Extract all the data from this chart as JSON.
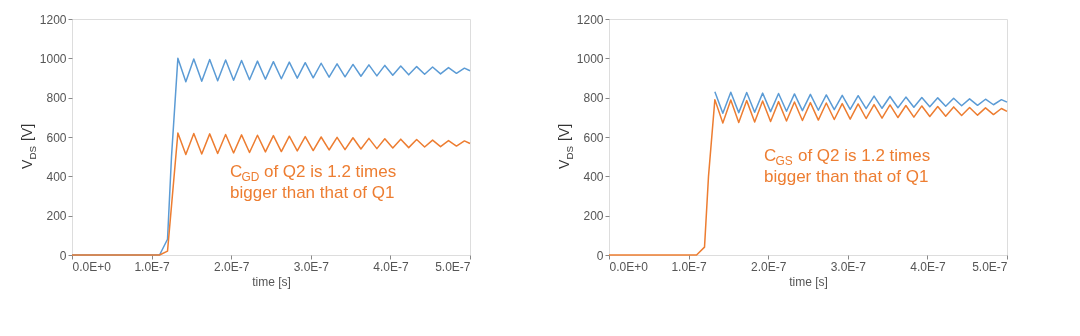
{
  "chart_data": [
    {
      "type": "line",
      "xlabel": "time [s]",
      "ylabel": "V$_{DS}$ [V]",
      "xlim": [
        0,
        5e-07
      ],
      "ylim": [
        0,
        1200
      ],
      "xticks": [
        {
          "value": 0,
          "label": "0.0E+0"
        },
        {
          "value": 1e-07,
          "label": "1.0E-7"
        },
        {
          "value": 2e-07,
          "label": "2.0E-7"
        },
        {
          "value": 3e-07,
          "label": "3.0E-7"
        },
        {
          "value": 4e-07,
          "label": "4.0E-7"
        },
        {
          "value": 5e-07,
          "label": "5.0E-7"
        }
      ],
      "yticks": [
        0,
        200,
        400,
        600,
        800,
        1000,
        1200
      ],
      "grid": false,
      "line_style": "solid",
      "marker": "none",
      "x": [
        0,
        1.1e-07,
        1.2e-07,
        1.25e-07,
        1.33e-07,
        1.43e-07,
        1.53e-07,
        1.63e-07,
        1.73e-07,
        1.83e-07,
        1.93e-07,
        2.03e-07,
        2.13e-07,
        2.23e-07,
        2.33e-07,
        2.43e-07,
        2.53e-07,
        2.63e-07,
        2.73e-07,
        2.83e-07,
        2.93e-07,
        3.03e-07,
        3.13e-07,
        3.23e-07,
        3.33e-07,
        3.43e-07,
        3.53e-07,
        3.63e-07,
        3.73e-07,
        3.83e-07,
        3.93e-07,
        4.03e-07,
        4.13e-07,
        4.23e-07,
        4.33e-07,
        4.43e-07,
        4.53e-07,
        4.63e-07,
        4.73e-07,
        4.83e-07,
        4.93e-07,
        5e-07
      ],
      "series": [
        {
          "color": "#5b9bd5",
          "values": [
            0,
            0,
            80,
            500,
            1000,
            881,
            997,
            884,
            994,
            886,
            992,
            889,
            989,
            891,
            986,
            894,
            983,
            896,
            981,
            899,
            978,
            901,
            975,
            904,
            972,
            906,
            969,
            909,
            967,
            911,
            964,
            914,
            961,
            916,
            958,
            919,
            956,
            921,
            953,
            924,
            950,
            937
          ]
        },
        {
          "color": "#ed7d31",
          "values": [
            0,
            0,
            20,
            250,
            620,
            511,
            618,
            514,
            616,
            516,
            613,
            519,
            611,
            521,
            609,
            524,
            607,
            526,
            604,
            529,
            602,
            531,
            600,
            534,
            598,
            536,
            596,
            539,
            593,
            541,
            591,
            544,
            589,
            546,
            587,
            549,
            584,
            551,
            582,
            554,
            580,
            567
          ]
        }
      ],
      "annotations": [
        "C$_{GD}$ of Q2 is 1.2 times\nbigger than that of Q1"
      ]
    },
    {
      "type": "line",
      "xlabel": "time [s]",
      "ylabel": "V$_{DS}$ [V]",
      "xlim": [
        0,
        5e-07
      ],
      "ylim": [
        0,
        1200
      ],
      "xticks": [
        {
          "value": 0,
          "label": "0.0E+0"
        },
        {
          "value": 1e-07,
          "label": "1.0E-7"
        },
        {
          "value": 2e-07,
          "label": "2.0E-7"
        },
        {
          "value": 3e-07,
          "label": "3.0E-7"
        },
        {
          "value": 4e-07,
          "label": "4.0E-7"
        },
        {
          "value": 5e-07,
          "label": "5.0E-7"
        }
      ],
      "yticks": [
        0,
        200,
        400,
        600,
        800,
        1000,
        1200
      ],
      "grid": false,
      "line_style": "solid",
      "marker": "none",
      "x": [
        0,
        1.1e-07,
        1.2e-07,
        1.25e-07,
        1.33e-07,
        1.43e-07,
        1.53e-07,
        1.63e-07,
        1.73e-07,
        1.83e-07,
        1.93e-07,
        2.03e-07,
        2.13e-07,
        2.23e-07,
        2.33e-07,
        2.43e-07,
        2.53e-07,
        2.63e-07,
        2.73e-07,
        2.83e-07,
        2.93e-07,
        3.03e-07,
        3.13e-07,
        3.23e-07,
        3.33e-07,
        3.43e-07,
        3.53e-07,
        3.63e-07,
        3.73e-07,
        3.83e-07,
        3.93e-07,
        4.03e-07,
        4.13e-07,
        4.23e-07,
        4.33e-07,
        4.43e-07,
        4.53e-07,
        4.63e-07,
        4.73e-07,
        4.83e-07,
        4.93e-07,
        5e-07
      ],
      "series": [
        {
          "color": "#5b9bd5",
          "values": [
            null,
            null,
            null,
            null,
            830,
            721,
            828,
            724,
            826,
            726,
            823,
            729,
            821,
            731,
            819,
            734,
            817,
            736,
            814,
            739,
            812,
            741,
            810,
            744,
            808,
            746,
            806,
            749,
            803,
            751,
            801,
            754,
            799,
            756,
            797,
            759,
            794,
            761,
            792,
            764,
            790,
            777
          ]
        },
        {
          "color": "#ed7d31",
          "values": [
            0,
            0,
            40,
            400,
            790,
            671,
            788,
            674,
            785,
            676,
            783,
            679,
            780,
            681,
            778,
            684,
            775,
            686,
            773,
            689,
            770,
            691,
            768,
            694,
            765,
            696,
            763,
            699,
            760,
            701,
            758,
            704,
            755,
            706,
            753,
            709,
            750,
            711,
            748,
            714,
            745,
            730
          ]
        }
      ],
      "annotations": [
        "C$_{GS}$ of Q2 is 1.2 times\nbigger than that of Q1"
      ]
    }
  ]
}
